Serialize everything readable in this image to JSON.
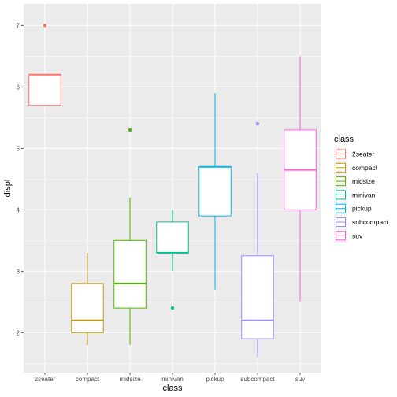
{
  "chart_data": {
    "type": "boxplot",
    "xlabel": "class",
    "ylabel": "displ",
    "ylim": [
      1.35,
      7.35
    ],
    "yticks": [
      2,
      3,
      4,
      5,
      6,
      7
    ],
    "grid": true,
    "legend_title": "class",
    "legend_position": "right",
    "categories": [
      "2seater",
      "compact",
      "midsize",
      "minivan",
      "pickup",
      "subcompact",
      "suv"
    ],
    "colors": [
      "#F8766D",
      "#C49A00",
      "#53B400",
      "#00C094",
      "#00B6EB",
      "#A58AFF",
      "#FB61D7"
    ],
    "boxes": [
      {
        "category": "2seater",
        "min": 5.7,
        "q1": 5.7,
        "median": 6.2,
        "q3": 6.2,
        "max": 6.2,
        "outliers": [
          7.0
        ]
      },
      {
        "category": "compact",
        "min": 1.8,
        "q1": 2.0,
        "median": 2.2,
        "q3": 2.8,
        "max": 3.3,
        "outliers": []
      },
      {
        "category": "midsize",
        "min": 1.8,
        "q1": 2.4,
        "median": 2.8,
        "q3": 3.5,
        "max": 4.2,
        "outliers": [
          5.3
        ]
      },
      {
        "category": "minivan",
        "min": 3.0,
        "q1": 3.3,
        "median": 3.3,
        "q3": 3.8,
        "max": 4.0,
        "outliers": [
          2.4
        ]
      },
      {
        "category": "pickup",
        "min": 2.7,
        "q1": 3.9,
        "median": 4.7,
        "q3": 4.7,
        "max": 5.9,
        "outliers": []
      },
      {
        "category": "subcompact",
        "min": 1.6,
        "q1": 1.9,
        "median": 2.2,
        "q3": 3.25,
        "max": 4.6,
        "outliers": [
          5.4
        ]
      },
      {
        "category": "suv",
        "min": 2.5,
        "q1": 4.0,
        "median": 4.65,
        "q3": 5.3,
        "max": 6.5,
        "outliers": []
      }
    ]
  }
}
